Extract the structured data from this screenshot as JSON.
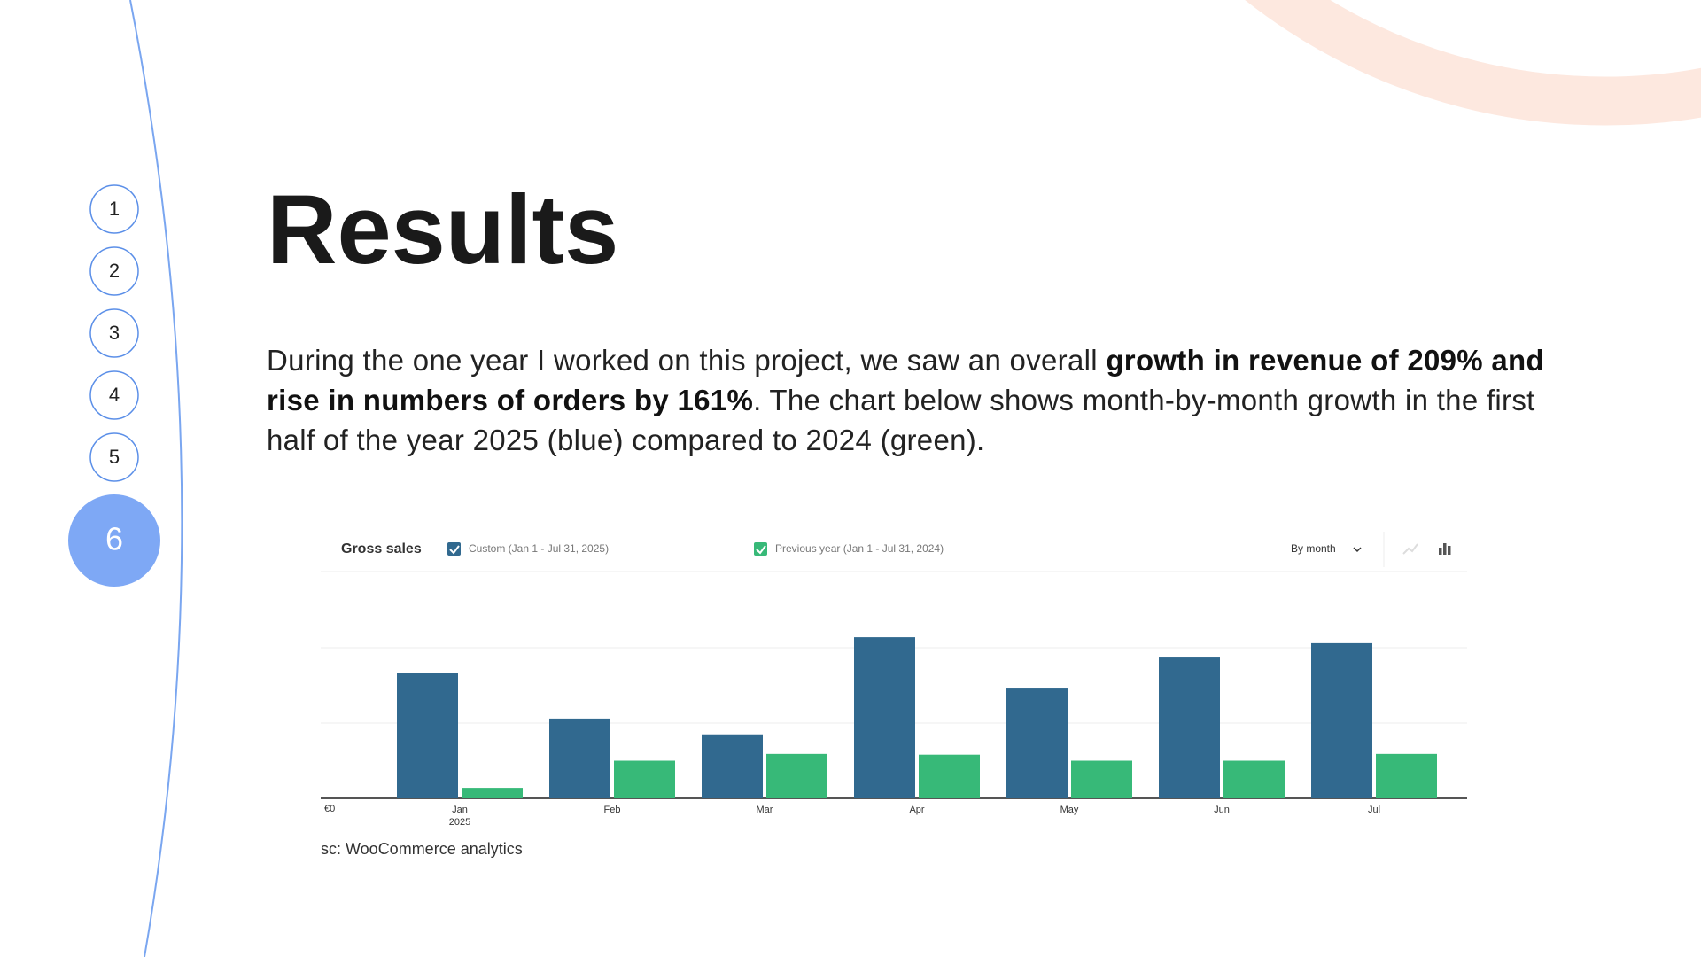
{
  "nav": {
    "items": [
      "1",
      "2",
      "3",
      "4",
      "5",
      "6"
    ],
    "active": 5
  },
  "title": "Results",
  "paragraph": [
    {
      "text": "During the one year I worked on this project, we saw an overall ",
      "bold": false
    },
    {
      "text": "growth in revenue of 209% and rise in numbers of orders by 161%",
      "bold": true
    },
    {
      "text": ". The chart below shows month-by-month growth in the first half of the year 2025 (blue) compared to 2024 (green).",
      "bold": false
    }
  ],
  "caption": "sc: WooCommerce analytics",
  "chart_data": {
    "type": "bar",
    "title": "Gross sales",
    "period_selector": "By month",
    "categories": [
      "Jan",
      "Feb",
      "Mar",
      "Apr",
      "May",
      "Jun",
      "Jul"
    ],
    "year_label": "2025",
    "series": [
      {
        "name": "Custom (Jan 1 - Jul 31, 2025)",
        "color": "#31698f",
        "values": [
          1.67,
          1.06,
          0.85,
          2.14,
          1.47,
          1.87,
          2.06
        ]
      },
      {
        "name": "Previous year (Jan 1 - Jul 31, 2024)",
        "color": "#37b978",
        "values": [
          0.14,
          0.5,
          0.59,
          0.58,
          0.5,
          0.5,
          0.59
        ]
      }
    ],
    "ylim": [
      0,
      3
    ],
    "yticks": [
      {
        "value": 0,
        "label": "€0"
      },
      {
        "value": 1,
        "label": null
      },
      {
        "value": 2,
        "label": null
      }
    ],
    "grid": true
  }
}
